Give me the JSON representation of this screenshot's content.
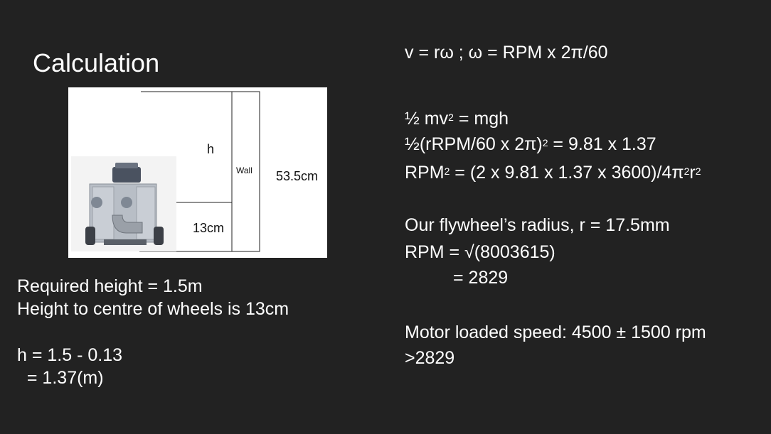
{
  "slide": {
    "title": "Calculation",
    "diagram": {
      "h_label": "h",
      "wall_label": "Wall",
      "wall_height_label": "53.5cm",
      "wheel_height_label": "13cm"
    },
    "left": {
      "line1": "Required height = 1.5m",
      "line2": "Height to centre of wheels is 13cm",
      "line3": "h = 1.5 - 0.13",
      "line4": "  = 1.37(m)"
    },
    "right": {
      "formula1": "v = rω ; ω = RPM x 2π/60",
      "energy": {
        "a": "½ mv",
        "a_sup": "2",
        "a_rest": " = mgh"
      },
      "sub": {
        "a": "½(rRPM/60 x 2π)",
        "a_sup": "2",
        "a_rest": " = 9.81 x 1.37"
      },
      "rpm_sq": {
        "a": "RPM",
        "a_sup": "2",
        "b": " = (2 x 9.81 x 1.37 x 3600)/4π",
        "b_sup": "2",
        "c": "r",
        "c_sup": "2"
      },
      "radius": "Our flywheel’s radius, r = 17.5mm",
      "rpm_root": "RPM = √(8003615)",
      "rpm_result": "= 2829",
      "motor": "Motor loaded speed: 4500 ± 1500 rpm",
      "compare": ">2829"
    }
  },
  "colors": {
    "background": "#222222",
    "text": "#ffffff",
    "diagram_bg": "#ffffff"
  }
}
